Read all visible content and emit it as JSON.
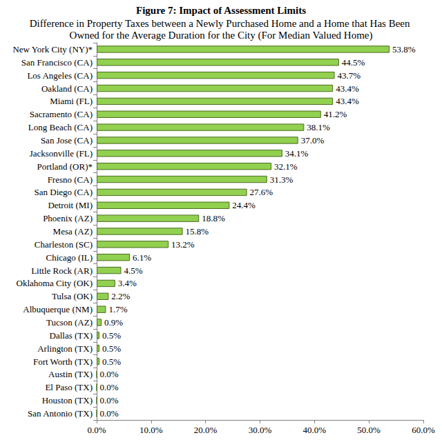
{
  "chart_data": {
    "type": "bar",
    "orientation": "horizontal",
    "title": "Figure 7: Impact of Assessment Limits",
    "subtitle": "Difference in Property Taxes between a Newly Purchased Home and a Home that Has Been Owned for the Average Duration for the City (For Median Valued Home)",
    "categories": [
      "New York City (NY)*",
      "San Francisco (CA)",
      "Los Angeles (CA)",
      "Oakland (CA)",
      "Miami (FL)",
      "Sacramento (CA)",
      "Long Beach (CA)",
      "San Jose (CA)",
      "Jacksonville (FL)",
      "Portland (OR)*",
      "Fresno (CA)",
      "San Diego (CA)",
      "Detroit (MI)",
      "Phoenix (AZ)",
      "Mesa (AZ)",
      "Charleston (SC)",
      "Chicago (IL)",
      "Little Rock (AR)",
      "Oklahoma City (OK)",
      "Tulsa (OK)",
      "Albuquerque (NM)",
      "Tucson (AZ)",
      "Dallas (TX)",
      "Arlington (TX)",
      "Fort Worth (TX)",
      "Austin (TX)",
      "El Paso (TX)",
      "Houston (TX)",
      "San Antonio (TX)"
    ],
    "values": [
      53.8,
      44.5,
      43.7,
      43.4,
      43.4,
      41.2,
      38.1,
      37.0,
      34.1,
      32.1,
      31.3,
      27.6,
      24.4,
      18.8,
      15.8,
      13.2,
      6.1,
      4.5,
      3.4,
      2.2,
      1.7,
      0.9,
      0.5,
      0.5,
      0.5,
      0.0,
      0.0,
      0.0,
      0.0
    ],
    "value_labels": [
      "53.8%",
      "44.5%",
      "43.7%",
      "43.4%",
      "43.4%",
      "41.2%",
      "38.1%",
      "37.0%",
      "34.1%",
      "32.1%",
      "31.3%",
      "27.6%",
      "24.4%",
      "18.8%",
      "15.8%",
      "13.2%",
      "6.1%",
      "4.5%",
      "3.4%",
      "2.2%",
      "1.7%",
      "0.9%",
      "0.5%",
      "0.5%",
      "0.5%",
      "0.0%",
      "0.0%",
      "0.0%",
      "0.0%"
    ],
    "color": "#92d050",
    "xlim": [
      0,
      60
    ],
    "xticks": [
      {
        "value": 0,
        "label": "0.0%"
      },
      {
        "value": 10,
        "label": "10.0%"
      },
      {
        "value": 20,
        "label": "20.0%"
      },
      {
        "value": 30,
        "label": "30.0%"
      },
      {
        "value": 40,
        "label": "40.0%"
      },
      {
        "value": 50,
        "label": "50.0%"
      },
      {
        "value": 60,
        "label": "60.0%"
      }
    ],
    "data_labels": true,
    "grid": false
  }
}
